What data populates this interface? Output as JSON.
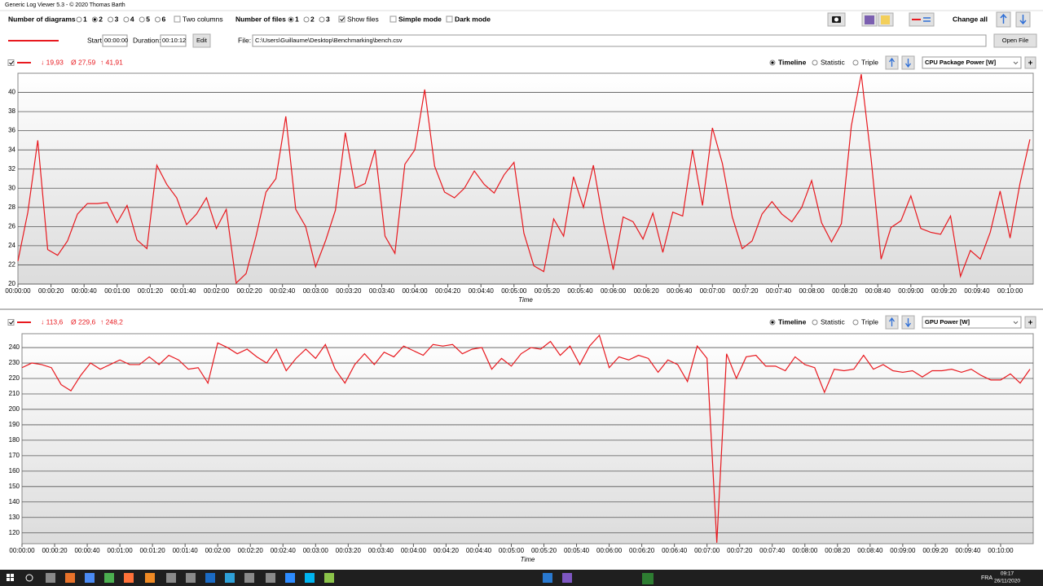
{
  "window": {
    "title": "Generic Log Viewer 5.3 - © 2020 Thomas Barth"
  },
  "toolbar": {
    "diagrams_label": "Number of diagrams",
    "diagram_options": [
      "1",
      "2",
      "3",
      "4",
      "5",
      "6"
    ],
    "two_columns": "Two columns",
    "files_label": "Number of files",
    "file_options": [
      "1",
      "2",
      "3"
    ],
    "show_files": "Show files",
    "simple_mode": "Simple mode",
    "dark_mode": "Dark mode",
    "change_all": "Change all"
  },
  "file_bar": {
    "start_label": "Start:",
    "start": "00:00:00",
    "duration_label": "Duration:",
    "duration": "00:10:12",
    "edit": "Edit",
    "file_label": "File:",
    "file_path": "C:\\Users\\Guillaume\\Desktop\\Benchmarking\\bench.csv",
    "open_file": "Open File"
  },
  "chart_data": [
    {
      "type": "line",
      "stats": {
        "min": "↓ 19,93",
        "avg": "Ø 27,59",
        "max": "↑ 41,91"
      },
      "view_modes": [
        "Timeline",
        "Statistic",
        "Triple"
      ],
      "channel": "CPU Package Power [W]",
      "x_label": "Time",
      "grid": true,
      "x": [
        0,
        6,
        12,
        18,
        24,
        30,
        36,
        42,
        48,
        54,
        60,
        66,
        72,
        78,
        84,
        90,
        96,
        102,
        108,
        114,
        120,
        126,
        132,
        138,
        144,
        150,
        156,
        162,
        168,
        174,
        180,
        186,
        192,
        198,
        204,
        210,
        216,
        222,
        228,
        234,
        240,
        246,
        252,
        258,
        264,
        270,
        276,
        282,
        288,
        294,
        300,
        306,
        312,
        318,
        324,
        330,
        336,
        342,
        348,
        354,
        360,
        366,
        372,
        378,
        384,
        390,
        396,
        402,
        408,
        414,
        420,
        426,
        432,
        438,
        444,
        450,
        456,
        462,
        468,
        474,
        480,
        486,
        492,
        498,
        504,
        510,
        516,
        522,
        528,
        534,
        540,
        546,
        552,
        558,
        564,
        570,
        576,
        582,
        588,
        594,
        600,
        606,
        612
      ],
      "xlim": [
        0,
        614
      ],
      "ylim": [
        20,
        42
      ],
      "yticks": [
        20,
        22,
        24,
        26,
        28,
        30,
        32,
        34,
        36,
        38,
        40
      ],
      "xticks": [
        {
          "value": 0,
          "label": "00:00:00"
        },
        {
          "value": 20,
          "label": "00:00:20"
        },
        {
          "value": 40,
          "label": "00:00:40"
        },
        {
          "value": 60,
          "label": "00:01:00"
        },
        {
          "value": 80,
          "label": "00:01:20"
        },
        {
          "value": 100,
          "label": "00:01:40"
        },
        {
          "value": 120,
          "label": "00:02:00"
        },
        {
          "value": 140,
          "label": "00:02:20"
        },
        {
          "value": 160,
          "label": "00:02:40"
        },
        {
          "value": 180,
          "label": "00:03:00"
        },
        {
          "value": 200,
          "label": "00:03:20"
        },
        {
          "value": 220,
          "label": "00:03:40"
        },
        {
          "value": 240,
          "label": "00:04:00"
        },
        {
          "value": 260,
          "label": "00:04:20"
        },
        {
          "value": 280,
          "label": "00:04:40"
        },
        {
          "value": 300,
          "label": "00:05:00"
        },
        {
          "value": 320,
          "label": "00:05:20"
        },
        {
          "value": 340,
          "label": "00:05:40"
        },
        {
          "value": 360,
          "label": "00:06:00"
        },
        {
          "value": 380,
          "label": "00:06:20"
        },
        {
          "value": 400,
          "label": "00:06:40"
        },
        {
          "value": 420,
          "label": "00:07:00"
        },
        {
          "value": 440,
          "label": "00:07:20"
        },
        {
          "value": 460,
          "label": "00:07:40"
        },
        {
          "value": 480,
          "label": "00:08:00"
        },
        {
          "value": 500,
          "label": "00:08:20"
        },
        {
          "value": 520,
          "label": "00:08:40"
        },
        {
          "value": 540,
          "label": "00:09:00"
        },
        {
          "value": 560,
          "label": "00:09:20"
        },
        {
          "value": 580,
          "label": "00:09:40"
        },
        {
          "value": 600,
          "label": "00:10:00"
        }
      ],
      "series": [
        {
          "color": "#e8191f",
          "values": [
            22.4,
            27.5,
            35,
            23.6,
            23,
            24.5,
            27.3,
            28.4,
            28.4,
            28.5,
            26.4,
            28.2,
            24.6,
            23.7,
            32.4,
            30.4,
            29,
            26.2,
            27.3,
            29,
            25.8,
            27.8,
            20.1,
            21.1,
            25,
            29.6,
            31,
            37.5,
            27.8,
            26,
            21.8,
            24.5,
            27.7,
            35.8,
            30,
            30.5,
            34,
            25,
            23.2,
            32.5,
            34,
            40.3,
            32.3,
            29.6,
            29,
            30,
            31.8,
            30.4,
            29.5,
            31.4,
            32.7,
            25.3,
            21.9,
            21.3,
            26.8,
            25,
            31.2,
            28,
            32.4,
            26.5,
            21.5,
            27,
            26.5,
            24.7,
            27.4,
            23.3,
            27.5,
            27.1,
            34,
            28.2,
            36.3,
            32.6,
            27,
            23.7,
            24.5,
            27.3,
            28.6,
            27.3,
            26.5,
            28,
            30.8,
            26.4,
            24.4,
            26.3,
            36.5,
            41.9,
            33,
            22.6,
            25.9,
            26.6,
            29.2,
            25.8,
            25.4,
            25.2,
            27.1,
            20.8,
            23.5,
            22.6,
            25.4,
            29.7,
            24.8,
            30.5,
            35.1
          ]
        }
      ]
    },
    {
      "type": "line",
      "stats": {
        "min": "↓ 113,6",
        "avg": "Ø 229,6",
        "max": "↑ 248,2"
      },
      "view_modes": [
        "Timeline",
        "Statistic",
        "Triple"
      ],
      "channel": "GPU Power [W]",
      "x_label": "Time",
      "grid": true,
      "x": [
        0,
        6,
        12,
        18,
        24,
        30,
        36,
        42,
        48,
        54,
        60,
        66,
        72,
        78,
        84,
        90,
        96,
        102,
        108,
        114,
        120,
        126,
        132,
        138,
        144,
        150,
        156,
        162,
        168,
        174,
        180,
        186,
        192,
        198,
        204,
        210,
        216,
        222,
        228,
        234,
        240,
        246,
        252,
        258,
        264,
        270,
        276,
        282,
        288,
        294,
        300,
        306,
        312,
        318,
        324,
        330,
        336,
        342,
        348,
        354,
        360,
        366,
        372,
        378,
        384,
        390,
        396,
        402,
        408,
        414,
        420,
        426,
        432,
        438,
        444,
        450,
        456,
        462,
        468,
        474,
        480,
        486,
        492,
        498,
        504,
        510,
        516,
        522,
        528,
        534,
        540,
        546,
        552,
        558,
        564,
        570,
        576,
        582,
        588,
        594,
        600,
        606,
        612,
        618
      ],
      "xlim": [
        0,
        620
      ],
      "ylim": [
        113,
        249
      ],
      "yticks": [
        120,
        130,
        140,
        150,
        160,
        170,
        180,
        190,
        200,
        210,
        220,
        230,
        240
      ],
      "xticks": [
        {
          "value": 0,
          "label": "00:00:00"
        },
        {
          "value": 20,
          "label": "00:00:20"
        },
        {
          "value": 40,
          "label": "00:00:40"
        },
        {
          "value": 60,
          "label": "00:01:00"
        },
        {
          "value": 80,
          "label": "00:01:20"
        },
        {
          "value": 100,
          "label": "00:01:40"
        },
        {
          "value": 120,
          "label": "00:02:00"
        },
        {
          "value": 140,
          "label": "00:02:20"
        },
        {
          "value": 160,
          "label": "00:02:40"
        },
        {
          "value": 180,
          "label": "00:03:00"
        },
        {
          "value": 200,
          "label": "00:03:20"
        },
        {
          "value": 220,
          "label": "00:03:40"
        },
        {
          "value": 240,
          "label": "00:04:00"
        },
        {
          "value": 260,
          "label": "00:04:20"
        },
        {
          "value": 280,
          "label": "00:04:40"
        },
        {
          "value": 300,
          "label": "00:05:00"
        },
        {
          "value": 320,
          "label": "00:05:20"
        },
        {
          "value": 340,
          "label": "00:05:40"
        },
        {
          "value": 360,
          "label": "00:06:00"
        },
        {
          "value": 380,
          "label": "00:06:20"
        },
        {
          "value": 400,
          "label": "00:06:40"
        },
        {
          "value": 420,
          "label": "00:07:00"
        },
        {
          "value": 440,
          "label": "00:07:20"
        },
        {
          "value": 460,
          "label": "00:07:40"
        },
        {
          "value": 480,
          "label": "00:08:00"
        },
        {
          "value": 500,
          "label": "00:08:20"
        },
        {
          "value": 520,
          "label": "00:08:40"
        },
        {
          "value": 540,
          "label": "00:09:00"
        },
        {
          "value": 560,
          "label": "00:09:20"
        },
        {
          "value": 580,
          "label": "00:09:40"
        },
        {
          "value": 600,
          "label": "00:10:00"
        }
      ],
      "series": [
        {
          "color": "#e8191f",
          "values": [
            227,
            230,
            229,
            227,
            216,
            212,
            222,
            230,
            226,
            229,
            232,
            229,
            229,
            234,
            229,
            235,
            232,
            226,
            227,
            217,
            243,
            240,
            236,
            239,
            234,
            230,
            239,
            225,
            233,
            239,
            233,
            242,
            226,
            217,
            229,
            236,
            229,
            237,
            234,
            241,
            238,
            235,
            242,
            241,
            242,
            236,
            239,
            240,
            226,
            233,
            228,
            236,
            240,
            239,
            244,
            235,
            241,
            229,
            241,
            248,
            227,
            234,
            232,
            235,
            233,
            224,
            232,
            229,
            218,
            241,
            233,
            113.6,
            236,
            220,
            234,
            235,
            228,
            228,
            225,
            234,
            229,
            227,
            211,
            226,
            225,
            226,
            235,
            226,
            229,
            225,
            224,
            225,
            221,
            225,
            225,
            226,
            224,
            226,
            222,
            219,
            219,
            223,
            217,
            226
          ]
        }
      ]
    }
  ],
  "taskbar": {
    "lang": "FRA",
    "time": "09:17",
    "date": "26/11/2020"
  }
}
